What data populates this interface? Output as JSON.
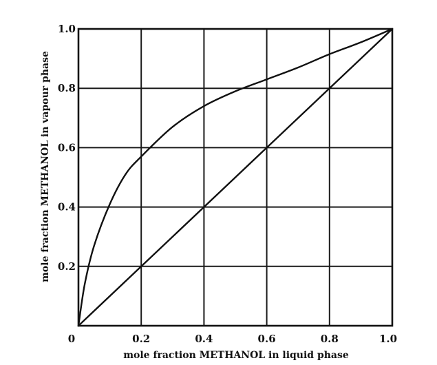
{
  "chart_data": {
    "type": "line",
    "title": "",
    "xlabel": "mole fraction METHANOL in liquid phase",
    "ylabel": "mole fraction METHANOL in vapour phase",
    "xlim": [
      0,
      1
    ],
    "ylim": [
      0,
      1
    ],
    "grid": true,
    "x_ticks": [
      0,
      0.2,
      0.4,
      0.6,
      0.8,
      1.0
    ],
    "x_tick_labels": [
      "0",
      "0.2",
      "0.4",
      "0.6",
      "0.8",
      "1.0"
    ],
    "y_ticks": [
      0.2,
      0.4,
      0.6,
      0.8,
      1.0
    ],
    "y_tick_labels": [
      "0.2",
      "0.4",
      "0.6",
      "0.8",
      "1.0"
    ],
    "series": [
      {
        "x": [
          0,
          0.02,
          0.05,
          0.1,
          0.15,
          0.2,
          0.3,
          0.4,
          0.5,
          0.6,
          0.7,
          0.8,
          0.9,
          1.0
        ],
        "y": [
          0,
          0.14,
          0.27,
          0.41,
          0.51,
          0.57,
          0.67,
          0.74,
          0.79,
          0.83,
          0.87,
          0.915,
          0.955,
          1.0
        ]
      },
      {
        "x": [
          0,
          1.0
        ],
        "y": [
          0,
          1.0
        ]
      }
    ]
  },
  "colors": {
    "line": "#111111",
    "grid": "#1a1a1a",
    "background": "#ffffff"
  }
}
